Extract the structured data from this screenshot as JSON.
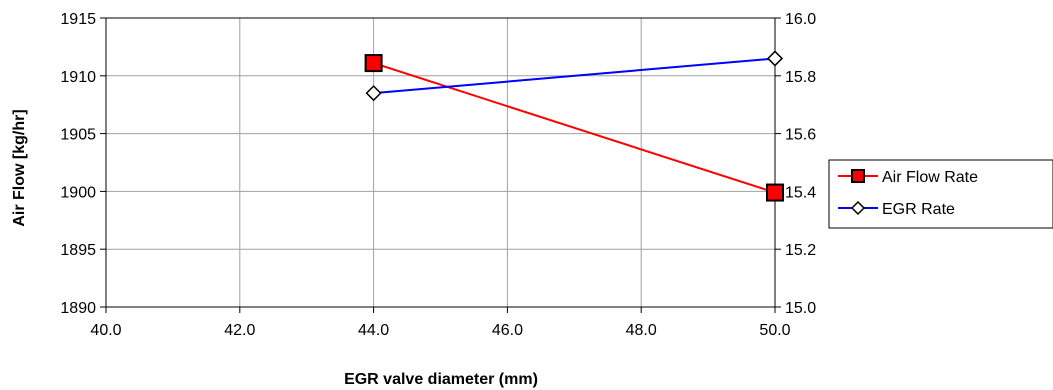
{
  "chart_data": {
    "type": "line",
    "title": "",
    "xlabel": "EGR valve diameter (mm)",
    "ylabel": "Air Flow [kg/hr]",
    "y2label": "",
    "xlim": [
      40.0,
      50.0
    ],
    "ylim": [
      1890,
      1915
    ],
    "y2lim": [
      15.0,
      16.0
    ],
    "x_ticks": [
      "40.0",
      "42.0",
      "44.0",
      "46.0",
      "48.0",
      "50.0"
    ],
    "x_tick_values": [
      40,
      42,
      44,
      46,
      48,
      50
    ],
    "y_ticks": [
      "1890",
      "1895",
      "1900",
      "1905",
      "1910",
      "1915"
    ],
    "y_tick_values": [
      1890,
      1895,
      1900,
      1905,
      1910,
      1915
    ],
    "y2_ticks": [
      "15.0",
      "15.2",
      "15.4",
      "15.6",
      "15.8",
      "16.0"
    ],
    "y2_tick_values": [
      15.0,
      15.2,
      15.4,
      15.6,
      15.8,
      16.0
    ],
    "grid": true,
    "legend_position": "right",
    "series": [
      {
        "name": "Air Flow Rate",
        "axis": "left",
        "color": "#ff0000",
        "marker": "square",
        "marker_fill": "#ff0000",
        "x": [
          44.0,
          50.0
        ],
        "values": [
          1911.1,
          1899.9
        ]
      },
      {
        "name": "EGR Rate",
        "axis": "right",
        "color": "#0000ff",
        "marker": "diamond",
        "marker_fill": "#ffffff",
        "x": [
          44.0,
          50.0
        ],
        "values": [
          15.74,
          15.86
        ]
      }
    ]
  }
}
